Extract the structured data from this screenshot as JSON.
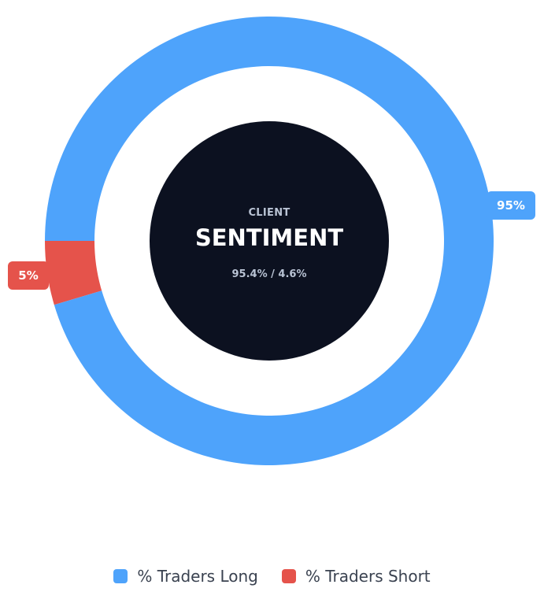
{
  "center": {
    "kicker": "CLIENT",
    "title": "SENTIMENT",
    "ratio": "95.4% / 4.6%"
  },
  "chart_data": {
    "type": "pie",
    "variant": "donut",
    "categories": [
      "% Traders Long",
      "% Traders Short"
    ],
    "values": [
      95.4,
      4.6
    ],
    "data_labels": [
      "95%",
      "5%"
    ],
    "colors": [
      "#4ea3fb",
      "#e5534b"
    ],
    "legend_position": "bottom",
    "title": "",
    "xlabel": "",
    "ylabel": ""
  },
  "legend": {
    "items": [
      {
        "label": "% Traders Long",
        "color": "#4ea3fb"
      },
      {
        "label": "% Traders Short",
        "color": "#e5534b"
      }
    ]
  },
  "colors": {
    "center_fill": "#0c1120",
    "center_kicker": "#b9c3d4",
    "center_title": "#ffffff",
    "label_text": "#ffffff"
  }
}
